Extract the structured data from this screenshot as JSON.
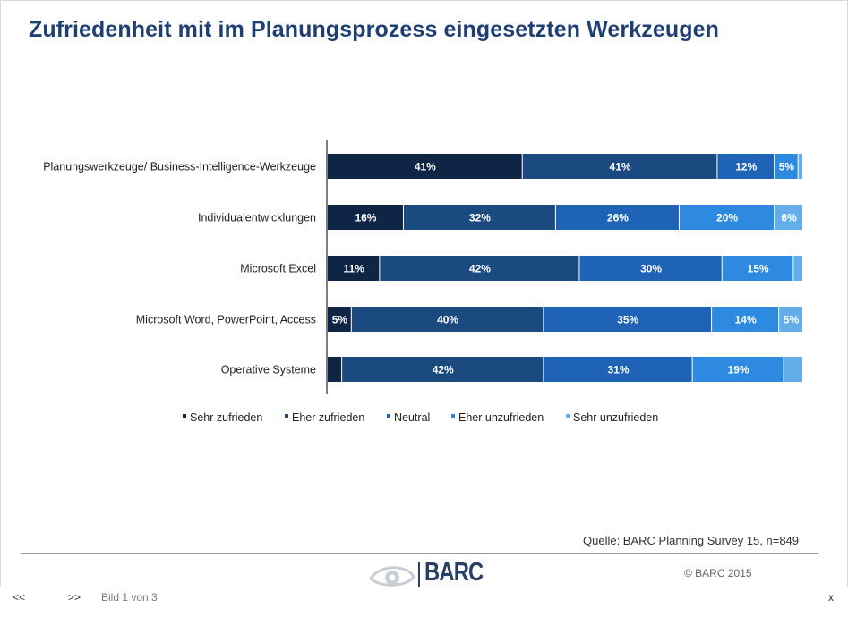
{
  "title": "Zufriedenheit mit im Planungsprozess eingesetzten Werkzeugen",
  "source": "Quelle: BARC Planning Survey 15, n=849",
  "copyright": "© BARC 2015",
  "logo_text": "BARC",
  "nav": {
    "prev": "<<",
    "next": ">>",
    "page": "Bild 1 von 3",
    "close": "x"
  },
  "colors": {
    "series": [
      "#0f2545",
      "#1b4a80",
      "#1e63b5",
      "#2d8ae0",
      "#63aeea"
    ],
    "label": "#ffffff",
    "axis": "#555555"
  },
  "chart_data": {
    "type": "bar",
    "orientation": "horizontal",
    "stacked": true,
    "percent": true,
    "legend_position": "bottom",
    "categories": [
      "Planungswerkzeuge/ Business-Intelligence-Werkzeuge",
      "Individualentwicklungen",
      "Microsoft Excel",
      "Microsoft Word, PowerPoint, Access",
      "Operative Systeme"
    ],
    "series": [
      {
        "name": "Sehr zufrieden",
        "values": [
          41,
          16,
          11,
          5,
          3
        ],
        "labels": [
          "41%",
          "16%",
          "11%",
          "5%",
          ""
        ]
      },
      {
        "name": "Eher zufrieden",
        "values": [
          41,
          32,
          42,
          40,
          42
        ],
        "labels": [
          "41%",
          "32%",
          "42%",
          "40%",
          "42%"
        ]
      },
      {
        "name": "Neutral",
        "values": [
          12,
          26,
          30,
          35,
          31
        ],
        "labels": [
          "12%",
          "26%",
          "30%",
          "35%",
          "31%"
        ]
      },
      {
        "name": "Eher unzufrieden",
        "values": [
          5,
          20,
          15,
          14,
          19
        ],
        "labels": [
          "5%",
          "20%",
          "15%",
          "14%",
          "19%"
        ]
      },
      {
        "name": "Sehr unzufrieden",
        "values": [
          1,
          6,
          2,
          5,
          4
        ],
        "labels": [
          "",
          "6%",
          "",
          "5%",
          ""
        ]
      }
    ]
  }
}
